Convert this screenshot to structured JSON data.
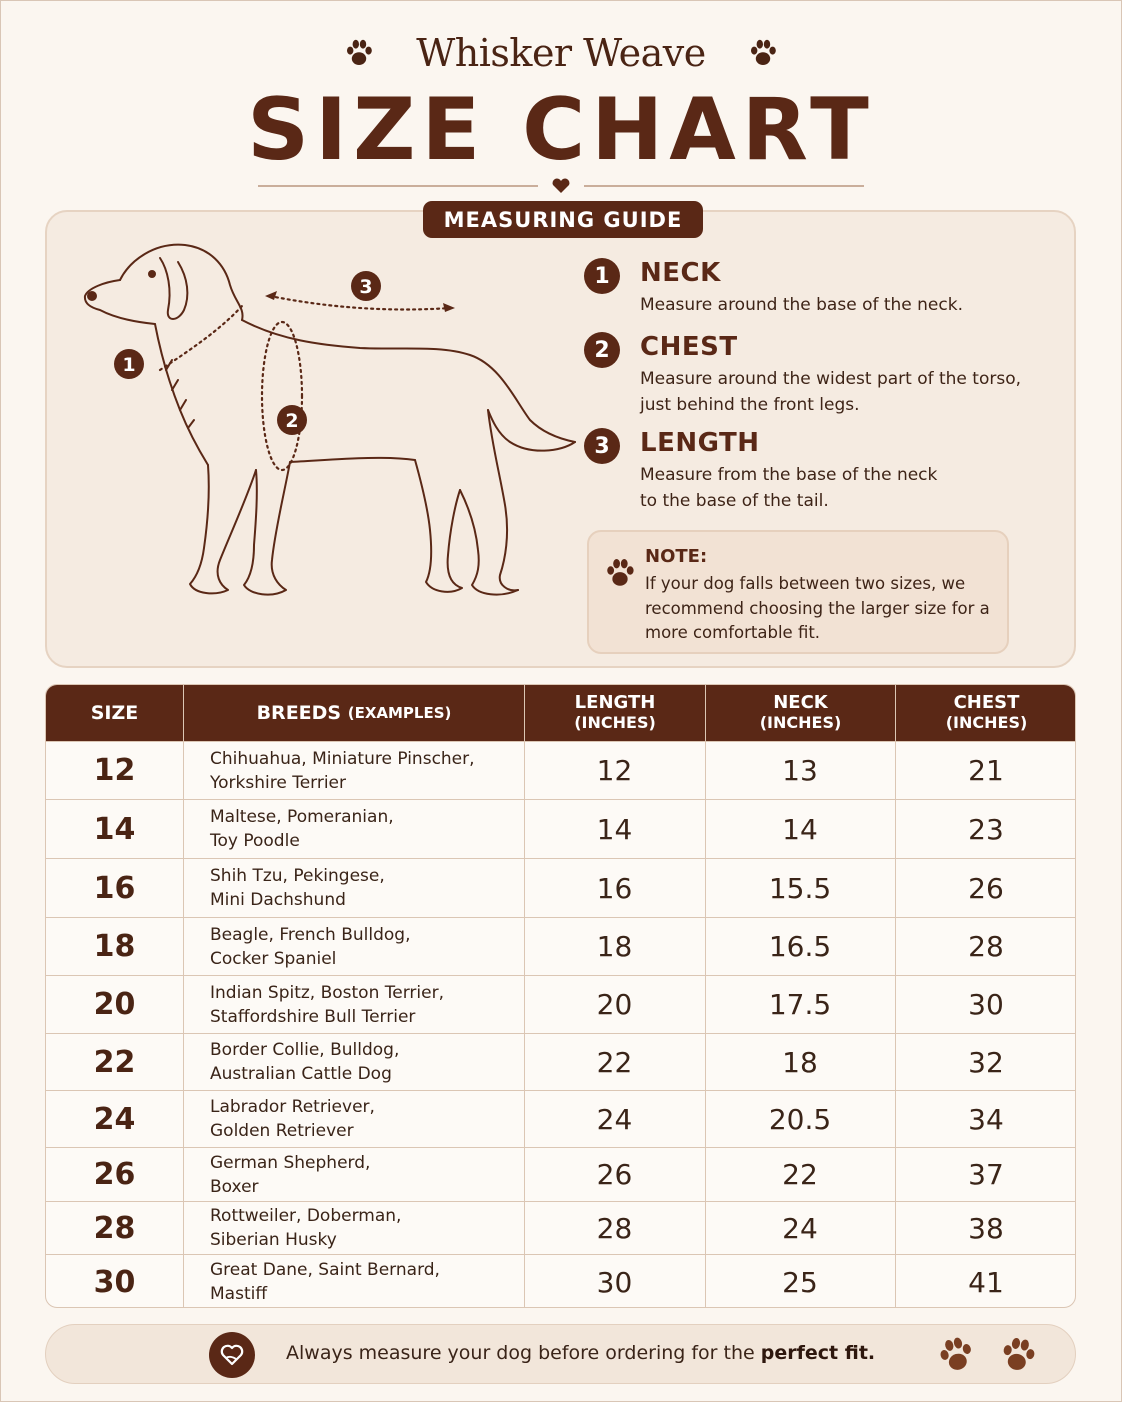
{
  "brand": {
    "name": "Whisker Weave"
  },
  "title": "SIZE CHART",
  "guide": {
    "badge": "MEASURING GUIDE",
    "steps": [
      {
        "num": "1",
        "title": "NECK",
        "desc": "Measure around the base of the neck."
      },
      {
        "num": "2",
        "title": "CHEST",
        "desc": "Measure around the widest part of the torso, just behind the front legs."
      },
      {
        "num": "3",
        "title": "LENGTH",
        "desc": "Measure from the base of the neck to the base of the tail."
      }
    ],
    "diagram_labels": [
      "1",
      "2",
      "3"
    ],
    "note": {
      "title": "NOTE:",
      "text": "If your dog falls between two sizes, we recommend choosing the larger size for a more comfortable fit."
    }
  },
  "table": {
    "headers": {
      "size": "SIZE",
      "breeds": "BREEDS",
      "breeds_sub": "(EXAMPLES)",
      "length": "LENGTH",
      "length_sub": "(INCHES)",
      "neck": "NECK",
      "neck_sub": "(INCHES)",
      "chest": "CHEST",
      "chest_sub": "(INCHES)"
    },
    "rows": [
      {
        "size": "12",
        "breed1": "Chihuahua, Miniature Pinscher,",
        "breed2": "Yorkshire Terrier",
        "length": "12",
        "neck": "13",
        "chest": "21"
      },
      {
        "size": "14",
        "breed1": "Maltese, Pomeranian,",
        "breed2": "Toy Poodle",
        "length": "14",
        "neck": "14",
        "chest": "23"
      },
      {
        "size": "16",
        "breed1": "Shih Tzu, Pekingese,",
        "breed2": "Mini Dachshund",
        "length": "16",
        "neck": "15.5",
        "chest": "26"
      },
      {
        "size": "18",
        "breed1": "Beagle, French Bulldog,",
        "breed2": "Cocker Spaniel",
        "length": "18",
        "neck": "16.5",
        "chest": "28"
      },
      {
        "size": "20",
        "breed1": "Indian Spitz, Boston Terrier,",
        "breed2": "Staffordshire Bull Terrier",
        "length": "20",
        "neck": "17.5",
        "chest": "30"
      },
      {
        "size": "22",
        "breed1": "Border Collie, Bulldog,",
        "breed2": "Australian Cattle Dog",
        "length": "22",
        "neck": "18",
        "chest": "32"
      },
      {
        "size": "24",
        "breed1": "Labrador Retriever,",
        "breed2": "Golden Retriever",
        "length": "24",
        "neck": "20.5",
        "chest": "34"
      },
      {
        "size": "26",
        "breed1": "German Shepherd,",
        "breed2": "Boxer",
        "length": "26",
        "neck": "22",
        "chest": "37"
      },
      {
        "size": "28",
        "breed1": "Rottweiler, Doberman,",
        "breed2": "Siberian Husky",
        "length": "28",
        "neck": "24",
        "chest": "38"
      },
      {
        "size": "30",
        "breed1": "Great Dane, Saint Bernard,",
        "breed2": "Mastiff",
        "length": "30",
        "neck": "25",
        "chest": "41"
      }
    ]
  },
  "footer": {
    "text": "Always measure your dog before ordering for the",
    "emphasis": "perfect fit."
  },
  "colors": {
    "primary": "#5a2816",
    "background": "#fbf6f0",
    "panel": "#f5ebe1",
    "note": "#f2e2d4"
  },
  "icons": [
    "paw-print-icon",
    "heart-icon",
    "heart-hand-icon"
  ]
}
